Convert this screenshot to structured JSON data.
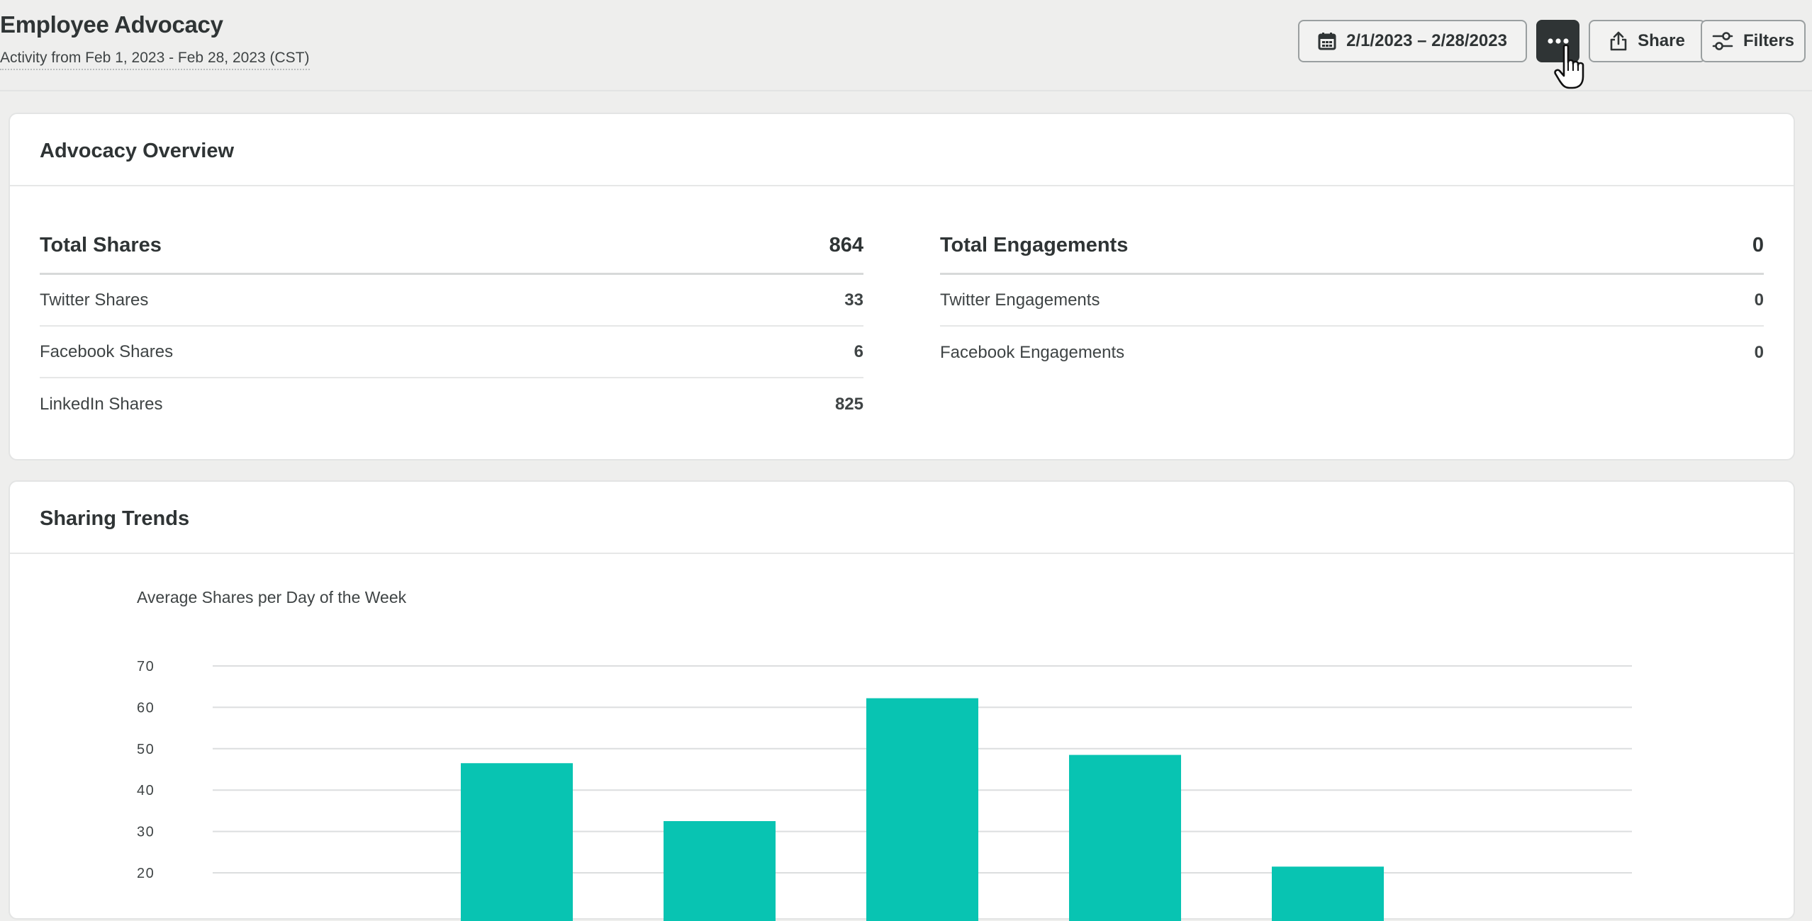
{
  "header": {
    "title": "Employee Advocacy",
    "subtitle": "Activity from Feb 1, 2023 - Feb 28, 2023 (CST)",
    "date_range_label": "2/1/2023 – 2/28/2023",
    "share_label": "Share",
    "filters_label": "Filters",
    "icons": {
      "date": "calendar-icon",
      "more": "more-horizontal-icon",
      "share": "share-upload-icon",
      "filters": "sliders-icon"
    }
  },
  "overview": {
    "title": "Advocacy Overview",
    "shares": {
      "total_label": "Total Shares",
      "total_value": "864",
      "rows": [
        {
          "label": "Twitter Shares",
          "value": "33"
        },
        {
          "label": "Facebook Shares",
          "value": "6"
        },
        {
          "label": "LinkedIn Shares",
          "value": "825"
        }
      ]
    },
    "engagements": {
      "total_label": "Total Engagements",
      "total_value": "0",
      "rows": [
        {
          "label": "Twitter Engagements",
          "value": "0"
        },
        {
          "label": "Facebook Engagements",
          "value": "0"
        }
      ]
    }
  },
  "trends": {
    "title": "Sharing Trends"
  },
  "colors": {
    "bar": "#08c4b2",
    "grid": "#dcdedf",
    "dark_button": "#2f3435"
  },
  "chart_data": {
    "type": "bar",
    "title": "Average Shares per Day of the Week",
    "xlabel": "",
    "ylabel": "",
    "ylim": [
      0,
      70
    ],
    "yticks": [
      20,
      30,
      40,
      50,
      60,
      70
    ],
    "grid": true,
    "values": [
      null,
      46.5,
      32.5,
      62.2,
      48.5,
      21.5,
      null
    ]
  }
}
